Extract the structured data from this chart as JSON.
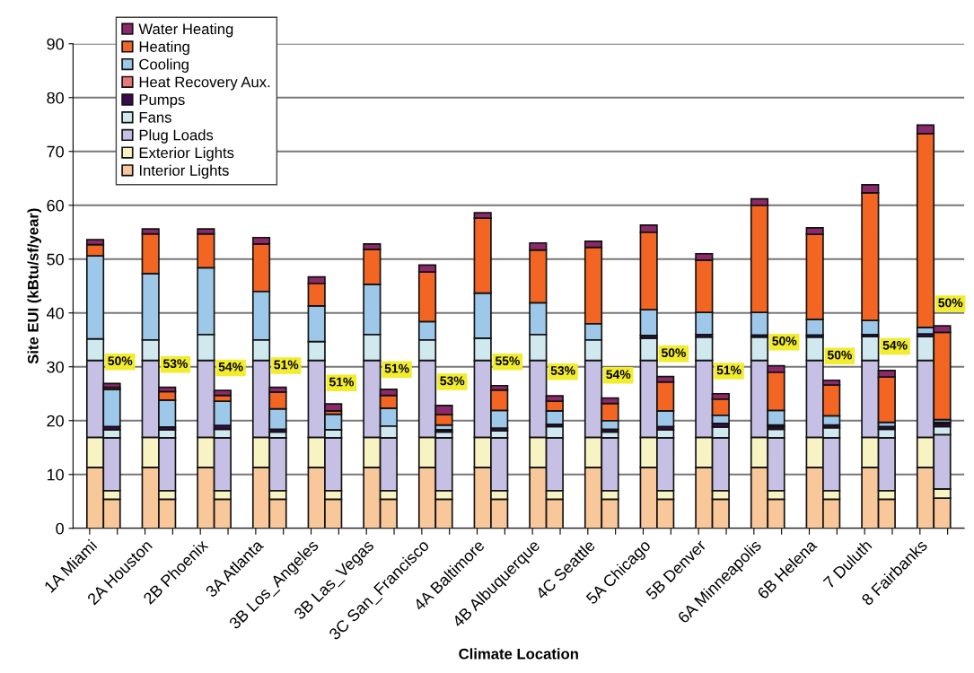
{
  "chart_data": {
    "type": "bar",
    "stacked": true,
    "xlabel": "Climate Location",
    "ylabel": "Site EUI (kBtu/sf/year)",
    "categories": [
      "1A Miami",
      null,
      "2A Houston",
      null,
      "2B Phoenix",
      null,
      "3A Atlanta",
      null,
      "3B Los_Angeles",
      null,
      "3B Las_Vegas",
      null,
      "3C San_Francisco",
      null,
      "4A Baltimore",
      null,
      "4B Albuquerque",
      null,
      "4C Seattle",
      null,
      "5A Chicago",
      null,
      "5B Denver",
      null,
      "6A Minneapolis",
      null,
      "6B Helena",
      null,
      "7 Duluth",
      null,
      "8 Fairbanks",
      null
    ],
    "series": [
      {
        "name": "Interior Lights",
        "color": "#f8c79a",
        "values": [
          11.3,
          5.4,
          11.3,
          5.4,
          11.3,
          5.4,
          11.3,
          5.4,
          11.3,
          5.4,
          11.3,
          5.4,
          11.3,
          5.4,
          11.3,
          5.4,
          11.3,
          5.4,
          11.3,
          5.4,
          11.3,
          5.4,
          11.3,
          5.4,
          11.3,
          5.4,
          11.3,
          5.4,
          11.3,
          5.4,
          11.3,
          5.6
        ]
      },
      {
        "name": "Exterior Lights",
        "color": "#f7f3c2",
        "values": [
          5.6,
          1.6,
          5.6,
          1.6,
          5.6,
          1.6,
          5.6,
          1.6,
          5.6,
          1.6,
          5.6,
          1.6,
          5.6,
          1.6,
          5.6,
          1.6,
          5.6,
          1.6,
          5.6,
          1.6,
          5.6,
          1.6,
          5.6,
          1.6,
          5.6,
          1.6,
          5.6,
          1.6,
          5.6,
          1.6,
          5.6,
          1.7
        ]
      },
      {
        "name": "Plug Loads",
        "color": "#c6c0e4",
        "values": [
          14.3,
          9.8,
          14.3,
          9.8,
          14.3,
          9.8,
          14.3,
          9.8,
          14.3,
          9.8,
          14.3,
          9.8,
          14.3,
          9.8,
          14.3,
          9.8,
          14.3,
          9.8,
          14.3,
          9.8,
          14.3,
          9.8,
          14.3,
          9.8,
          14.3,
          9.8,
          14.3,
          9.8,
          14.3,
          9.8,
          14.3,
          10.1
        ]
      },
      {
        "name": "Fans",
        "color": "#cfe9ee",
        "values": [
          4.0,
          1.5,
          3.8,
          1.5,
          4.8,
          1.6,
          3.8,
          1.1,
          3.5,
          1.5,
          4.8,
          2.2,
          3.8,
          1.1,
          4.1,
          1.3,
          4.8,
          2.1,
          3.8,
          1.1,
          4.1,
          1.5,
          4.3,
          2.0,
          4.3,
          1.6,
          4.3,
          1.9,
          4.4,
          1.6,
          4.4,
          1.5
        ]
      },
      {
        "name": "Pumps",
        "color": "#3d0a4f",
        "values": [
          0,
          0.6,
          0,
          0.5,
          0,
          0.7,
          0,
          0.5,
          0,
          0,
          0,
          0,
          0,
          0.4,
          0,
          0.5,
          0,
          0.4,
          0,
          0.5,
          0.5,
          0.6,
          0.5,
          0.7,
          0.4,
          0.5,
          0.4,
          0.5,
          0.4,
          0.5,
          0.5,
          0.5
        ]
      },
      {
        "name": "Heat Recovery Aux.",
        "color": "#e8787a",
        "values": [
          0,
          0,
          0,
          0,
          0,
          0,
          0,
          0,
          0,
          0,
          0,
          0,
          0,
          0,
          0,
          0,
          0,
          0,
          0,
          0,
          0,
          0,
          0,
          0,
          0,
          0.3,
          0,
          null,
          0,
          null,
          0,
          0.3
        ]
      },
      {
        "name": "Cooling",
        "color": "#9ec8ea",
        "values": [
          15.4,
          6.9,
          12.3,
          5.0,
          12.4,
          4.5,
          9.0,
          3.8,
          6.6,
          2.9,
          9.3,
          3.3,
          3.4,
          0.9,
          8.4,
          3.3,
          5.9,
          2.5,
          3.0,
          1.6,
          4.8,
          2.9,
          4.1,
          1.5,
          4.2,
          2.7,
          2.9,
          1.7,
          2.6,
          0.8,
          1.2,
          0.5
        ]
      },
      {
        "name": "Heating",
        "color": "#f26522",
        "values": [
          2.1,
          0.4,
          7.4,
          1.6,
          6.3,
          1.1,
          8.8,
          3.1,
          4.2,
          0.6,
          6.5,
          2.4,
          9.2,
          1.9,
          13.9,
          3.8,
          9.8,
          1.8,
          14.2,
          3.2,
          14.4,
          5.4,
          9.7,
          3.0,
          19.9,
          7.1,
          15.8,
          5.7,
          23.7,
          8.4,
          36.0,
          16.2
        ]
      },
      {
        "name": "Water Heating",
        "color": "#8b2a6b",
        "values": [
          0.9,
          0.7,
          0.9,
          0.8,
          0.9,
          0.9,
          1.2,
          0.9,
          1.2,
          1.3,
          1.0,
          1.1,
          1.3,
          1.7,
          1.0,
          0.8,
          1.3,
          1.0,
          1.1,
          1.0,
          1.3,
          1.0,
          1.2,
          1.0,
          1.2,
          1.2,
          1.2,
          0.9,
          1.5,
          1.2,
          1.6,
          1.2
        ]
      }
    ],
    "annotations": [
      {
        "text": "50%",
        "x": "1A Miami",
        "y": 30.9
      },
      {
        "text": "53%",
        "x": "2A Houston",
        "y": 30.4
      },
      {
        "text": "54%",
        "x": "2B Phoenix",
        "y": 29.8
      },
      {
        "text": "51%",
        "x": "3A Atlanta",
        "y": 30.2
      },
      {
        "text": "51%",
        "x": "3B Los_Angeles",
        "y": 27.0
      },
      {
        "text": "51%",
        "x": "3B Las_Vegas",
        "y": 29.5
      },
      {
        "text": "53%",
        "x": "3C San_Francisco",
        "y": 27.2
      },
      {
        "text": "55%",
        "x": "4A Baltimore",
        "y": 30.9
      },
      {
        "text": "53%",
        "x": "4B Albuquerque",
        "y": 29.1
      },
      {
        "text": "54%",
        "x": "4C Seattle",
        "y": 28.4
      },
      {
        "text": "50%",
        "x": "5A Chicago",
        "y": 32.4
      },
      {
        "text": "51%",
        "x": "5B Denver",
        "y": 29.2
      },
      {
        "text": "50%",
        "x": "6A Minneapolis",
        "y": 34.6
      },
      {
        "text": "50%",
        "x": "6B Helena",
        "y": 32.0
      },
      {
        "text": "54%",
        "x": "7 Duluth",
        "y": 33.8
      },
      {
        "text": "50%",
        "x": "8 Fairbanks",
        "y": 41.7
      }
    ],
    "ylim": [
      0,
      90
    ],
    "yticks": [
      0,
      10,
      20,
      30,
      40,
      50,
      60,
      70,
      80,
      90
    ],
    "grid": "y",
    "legend": "top left"
  }
}
